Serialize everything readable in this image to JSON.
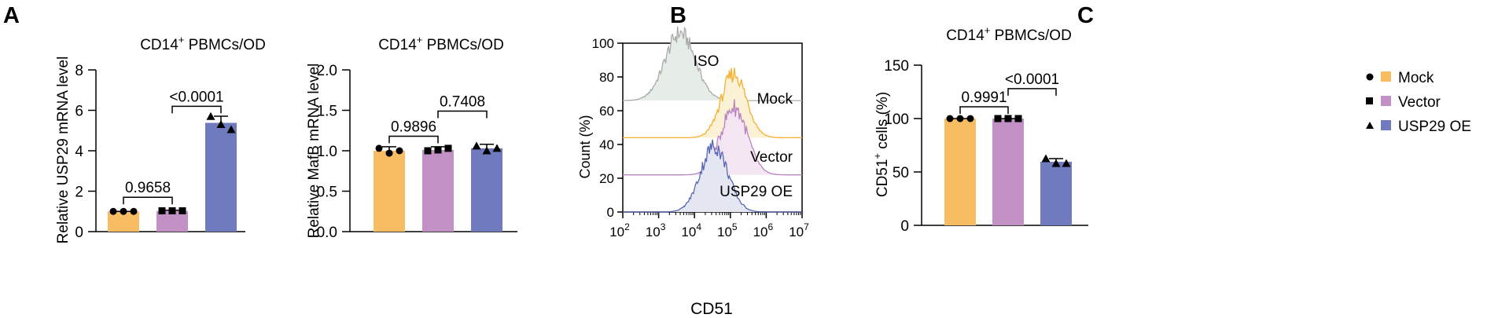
{
  "colors": {
    "mock": "#F8BD63",
    "vector": "#C290C5",
    "usp29": "#6F7BBE",
    "iso_line": "#AAAAAA",
    "iso_fill": "#E6EDE6",
    "mock_line": "#F6B02E",
    "mock_fill": "#FBF1D4",
    "vector_line": "#B883C0",
    "vector_fill": "#F3E6F2",
    "usp_line": "#5866B7",
    "usp_fill": "#E4E7F2",
    "axis": "#000000"
  },
  "panels": {
    "a": "A",
    "b": "B",
    "c": "C"
  },
  "legend": {
    "items": [
      {
        "label": "Mock",
        "marker": "circle",
        "color_key": "mock"
      },
      {
        "label": "Vector",
        "marker": "square",
        "color_key": "vector"
      },
      {
        "label": "USP29 OE",
        "marker": "triangle",
        "color_key": "usp29"
      }
    ]
  },
  "chart_data": [
    {
      "id": "usp29",
      "type": "bar",
      "title_main": "CD14",
      "title_sup": "+",
      "title_rest": " PBMCs/OD",
      "ylabel": "Relative USP29 mRNA level",
      "ylim": [
        0,
        8
      ],
      "yticks": [
        0,
        2,
        4,
        6,
        8
      ],
      "categories": [
        "Mock",
        "Vector",
        "USP29 OE"
      ],
      "values": [
        1.0,
        1.02,
        5.38
      ],
      "errors": [
        0.0,
        0.04,
        0.33
      ],
      "points": [
        [
          1.0,
          1.0,
          1.0
        ],
        [
          1.03,
          1.03,
          1.03
        ],
        [
          5.7,
          5.3,
          5.05
        ]
      ],
      "comparisons": [
        {
          "from": 0,
          "to": 1,
          "label": "0.9658",
          "y": 1.7
        },
        {
          "from": 1,
          "to": 2,
          "label": "<0.0001",
          "y": 6.2
        }
      ]
    },
    {
      "id": "mafb",
      "type": "bar",
      "title_main": "CD14",
      "title_sup": "+",
      "title_rest": " PBMCs/OD",
      "ylabel": "Relative MafB mRNA level",
      "ylim": [
        0,
        2.0
      ],
      "yticks": [
        0.0,
        0.5,
        1.0,
        1.5,
        2.0
      ],
      "tick_decimals": 1,
      "categories": [
        "Mock",
        "Vector",
        "USP29 OE"
      ],
      "values": [
        1.0,
        1.01,
        1.03
      ],
      "errors": [
        0.05,
        0.04,
        0.05
      ],
      "points": [
        [
          1.03,
          0.97,
          1.0
        ],
        [
          1.0,
          1.01,
          1.03
        ],
        [
          1.06,
          1.0,
          1.03
        ]
      ],
      "comparisons": [
        {
          "from": 0,
          "to": 1,
          "label": "0.9896",
          "y": 1.18
        },
        {
          "from": 1,
          "to": 2,
          "label": "0.7408",
          "y": 1.49
        }
      ]
    },
    {
      "id": "flow",
      "type": "histogram",
      "xlabel": "CD51",
      "ylabel": "Count  (%)",
      "ylim": [
        0,
        100
      ],
      "yticks": [
        0,
        20,
        40,
        60,
        80,
        100
      ],
      "xlim_log10": [
        2,
        7
      ],
      "xtick_base": "10",
      "xtick_exponents": [
        "2",
        "3",
        "4",
        "5",
        "6",
        "7"
      ],
      "series": [
        {
          "name": "ISO",
          "color_key": "iso",
          "baseline": 66,
          "peak_log": 3.6,
          "height": 40,
          "spread": 0.42
        },
        {
          "name": "Mock",
          "color_key": "mock",
          "baseline": 44,
          "peak_log": 5.1,
          "height": 38,
          "spread": 0.35
        },
        {
          "name": "Vector",
          "color_key": "vector",
          "baseline": 22,
          "peak_log": 5.1,
          "height": 40,
          "spread": 0.37
        },
        {
          "name": "USP29 OE",
          "color_key": "usp",
          "baseline": 0,
          "peak_log": 4.55,
          "height": 39,
          "spread": 0.38
        }
      ]
    },
    {
      "id": "cd51",
      "type": "bar",
      "title_main": "CD14",
      "title_sup": "+",
      "title_rest": " PBMCs/OD",
      "ylabel_main": "CD51",
      "ylabel_sup": "+",
      "ylabel_rest": " cells (%)",
      "ylim": [
        0,
        150
      ],
      "yticks": [
        0,
        50,
        100,
        150
      ],
      "categories": [
        "Mock",
        "Vector",
        "USP29 OE"
      ],
      "values": [
        100,
        100,
        59.5
      ],
      "errors": [
        0,
        0,
        3
      ],
      "points": [
        [
          100,
          100,
          100
        ],
        [
          100,
          100,
          100
        ],
        [
          62.5,
          58,
          58
        ]
      ],
      "comparisons": [
        {
          "from": 0,
          "to": 1,
          "label": "0.9991",
          "y": 111
        },
        {
          "from": 1,
          "to": 2,
          "label": "<0.0001",
          "y": 128
        }
      ]
    }
  ]
}
